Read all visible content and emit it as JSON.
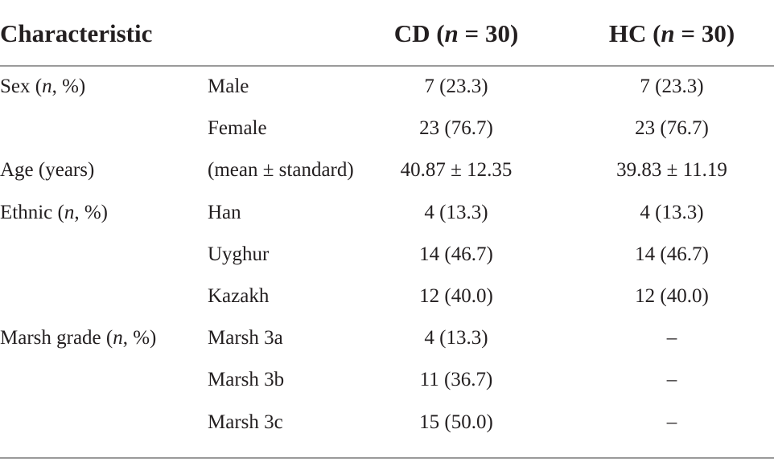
{
  "table": {
    "header": [
      [
        "Characteristic"
      ],
      [
        "CD (",
        "n",
        " = 30)"
      ],
      [
        "HC (",
        "n",
        " = 30)"
      ]
    ],
    "rows": [
      {
        "group": [
          "Sex (",
          "n",
          ", %)"
        ],
        "item": "Male",
        "cd": "7 (23.3)",
        "hc": "7 (23.3)"
      },
      {
        "item": "Female",
        "cd": "23 (76.7)",
        "hc": "23 (76.7)"
      },
      {
        "group": [
          "Age (years)"
        ],
        "item": "(mean ± standard)",
        "cd": "40.87 ± 12.35",
        "hc": "39.83 ± 11.19"
      },
      {
        "group": [
          "Ethnic (",
          "n",
          ", %)"
        ],
        "item": "Han",
        "cd": "4 (13.3)",
        "hc": "4 (13.3)"
      },
      {
        "item": "Uyghur",
        "cd": "14 (46.7)",
        "hc": "14 (46.7)"
      },
      {
        "item": "Kazakh",
        "cd": "12 (40.0)",
        "hc": "12 (40.0)"
      },
      {
        "group": [
          "Marsh grade (",
          "n",
          ", %)"
        ],
        "item": "Marsh 3a",
        "cd": "4 (13.3)",
        "hc": "–"
      },
      {
        "item": "Marsh 3b",
        "cd": "11 (36.7)",
        "hc": "–"
      },
      {
        "item": "Marsh 3c",
        "cd": "15 (50.0)",
        "hc": "–"
      }
    ]
  }
}
